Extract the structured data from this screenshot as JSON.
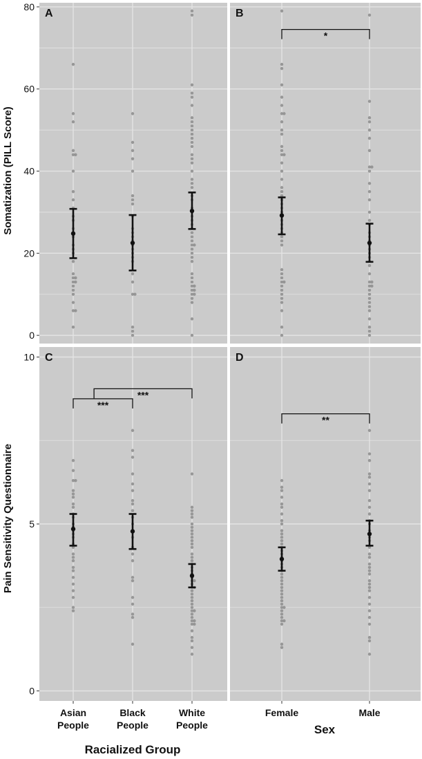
{
  "figure": {
    "colors": {
      "panel_bg": "#cbcbcb",
      "grid": "#e4e4e4",
      "point": "#8f8f8f",
      "errorbar": "#111111",
      "text": "#111111"
    },
    "ylabel_top": "Somatization (PILL Score)",
    "ylabel_bottom": "Pain Sensitivity Questionnaire",
    "xlabel_left": "Racialized Group",
    "xlabel_right": "Sex"
  },
  "chart_data": [
    {
      "panel": "A",
      "type": "scatter",
      "categories": [
        "Asian\nPeople",
        "Black\nPeople",
        "White\nPeople"
      ],
      "ylim": [
        -2,
        81
      ],
      "yticks": [
        0,
        20,
        40,
        60,
        80
      ],
      "grid": true,
      "means": [
        24.8,
        22.5,
        30.3
      ],
      "ci_low": [
        18.8,
        15.8,
        25.9
      ],
      "ci_high": [
        30.8,
        29.3,
        34.8
      ],
      "points": [
        [
          2,
          6,
          6,
          8,
          10,
          11,
          12,
          13,
          13,
          14,
          14,
          15,
          18,
          20,
          21,
          22,
          24,
          25,
          26,
          28,
          29,
          31,
          33,
          35,
          40,
          44,
          44,
          45,
          52,
          54,
          66
        ],
        [
          0,
          1,
          2,
          10,
          10,
          13,
          15,
          18,
          19,
          20,
          21,
          22,
          23,
          24,
          25,
          26,
          29,
          32,
          33,
          34,
          40,
          43,
          45,
          47,
          54
        ],
        [
          0,
          4,
          8,
          9,
          10,
          10,
          11,
          11,
          12,
          12,
          13,
          14,
          15,
          18,
          19,
          20,
          21,
          22,
          22,
          23,
          24,
          25,
          26,
          27,
          28,
          29,
          30,
          31,
          33,
          34,
          36,
          37,
          38,
          40,
          42,
          43,
          44,
          46,
          47,
          48,
          49,
          50,
          51,
          52,
          53,
          56,
          58,
          59,
          61,
          78,
          79
        ]
      ],
      "significance": []
    },
    {
      "panel": "B",
      "type": "scatter",
      "categories": [
        "Female",
        "Male"
      ],
      "ylim": [
        -2,
        81
      ],
      "yticks": [
        0,
        20,
        40,
        60,
        80
      ],
      "grid": true,
      "means": [
        29.2,
        22.5
      ],
      "ci_low": [
        24.6,
        17.9
      ],
      "ci_high": [
        33.6,
        27.2
      ],
      "points": [
        [
          0,
          2,
          6,
          8,
          9,
          10,
          11,
          12,
          13,
          13,
          14,
          15,
          16,
          22,
          23,
          24,
          25,
          26,
          27,
          28,
          29,
          30,
          31,
          32,
          33,
          34,
          35,
          36,
          38,
          40,
          42,
          44,
          44,
          45,
          46,
          49,
          50,
          52,
          54,
          54,
          56,
          58,
          61,
          65,
          66,
          79
        ],
        [
          0,
          1,
          2,
          4,
          6,
          7,
          8,
          9,
          10,
          11,
          12,
          12,
          13,
          13,
          15,
          17,
          18,
          19,
          20,
          21,
          22,
          23,
          24,
          25,
          27,
          28,
          30,
          33,
          35,
          37,
          40,
          41,
          41,
          45,
          48,
          50,
          52,
          53,
          57,
          78
        ]
      ],
      "significance": [
        {
          "from": 0,
          "to": 1,
          "label": "*",
          "y": 74.5
        }
      ]
    },
    {
      "panel": "C",
      "type": "scatter",
      "categories": [
        "Asian\nPeople",
        "Black\nPeople",
        "White\nPeople"
      ],
      "ylim": [
        -0.3,
        10.3
      ],
      "yticks": [
        0,
        5,
        10
      ],
      "grid": true,
      "means": [
        4.85,
        4.78,
        3.45
      ],
      "ci_low": [
        4.35,
        4.25,
        3.1
      ],
      "ci_high": [
        5.3,
        5.3,
        3.8
      ],
      "points": [
        [
          2.4,
          2.5,
          2.8,
          3.0,
          3.2,
          3.4,
          3.6,
          3.7,
          3.9,
          4.0,
          4.1,
          4.3,
          4.4,
          4.6,
          4.7,
          4.8,
          4.9,
          5.0,
          5.2,
          5.3,
          5.5,
          5.6,
          5.8,
          5.9,
          6.0,
          6.3,
          6.3,
          6.6,
          6.9
        ],
        [
          1.4,
          2.2,
          2.3,
          2.6,
          2.8,
          3.3,
          3.4,
          3.9,
          4.1,
          4.3,
          4.6,
          4.8,
          5.0,
          5.2,
          5.4,
          5.6,
          5.7,
          6.0,
          6.2,
          6.5,
          7.0,
          7.2,
          7.8
        ],
        [
          1.1,
          1.3,
          1.5,
          1.6,
          1.8,
          2.0,
          2.0,
          2.1,
          2.1,
          2.2,
          2.3,
          2.4,
          2.4,
          2.5,
          2.6,
          2.7,
          2.8,
          2.9,
          3.0,
          3.1,
          3.1,
          3.2,
          3.3,
          3.3,
          3.4,
          3.5,
          3.6,
          3.7,
          3.8,
          3.9,
          4.0,
          4.1,
          4.3,
          4.4,
          4.5,
          4.6,
          4.7,
          4.8,
          4.9,
          5.0,
          5.2,
          5.3,
          5.4,
          5.5,
          6.5
        ]
      ],
      "significance": [
        {
          "from": 0,
          "to": 1,
          "label": "***",
          "y": 8.75
        },
        {
          "from": 0.35,
          "to": 2,
          "label": "***",
          "y": 9.05
        }
      ]
    },
    {
      "panel": "D",
      "type": "scatter",
      "categories": [
        "Female",
        "Male"
      ],
      "ylim": [
        -0.3,
        10.3
      ],
      "yticks": [
        0,
        5,
        10
      ],
      "grid": true,
      "means": [
        3.95,
        4.7
      ],
      "ci_low": [
        3.6,
        4.35
      ],
      "ci_high": [
        4.3,
        5.1
      ],
      "points": [
        [
          1.3,
          1.4,
          2.0,
          2.1,
          2.1,
          2.2,
          2.3,
          2.4,
          2.5,
          2.5,
          2.6,
          2.7,
          2.8,
          2.9,
          3.0,
          3.1,
          3.2,
          3.3,
          3.4,
          3.5,
          3.6,
          3.7,
          3.8,
          3.9,
          4.0,
          4.1,
          4.2,
          4.3,
          4.4,
          4.5,
          4.6,
          4.7,
          4.8,
          5.0,
          5.1,
          5.3,
          5.5,
          5.6,
          5.8,
          6.0,
          6.1,
          6.3
        ],
        [
          1.1,
          1.5,
          1.6,
          2.0,
          2.2,
          2.4,
          2.6,
          2.8,
          3.0,
          3.1,
          3.2,
          3.3,
          3.5,
          3.6,
          3.7,
          3.8,
          4.0,
          4.1,
          4.3,
          4.5,
          4.6,
          4.8,
          5.0,
          5.1,
          5.3,
          5.5,
          5.7,
          6.0,
          6.2,
          6.4,
          6.5,
          6.9,
          7.1,
          7.8
        ]
      ],
      "significance": [
        {
          "from": 0,
          "to": 1,
          "label": "**",
          "y": 8.3
        }
      ]
    }
  ]
}
